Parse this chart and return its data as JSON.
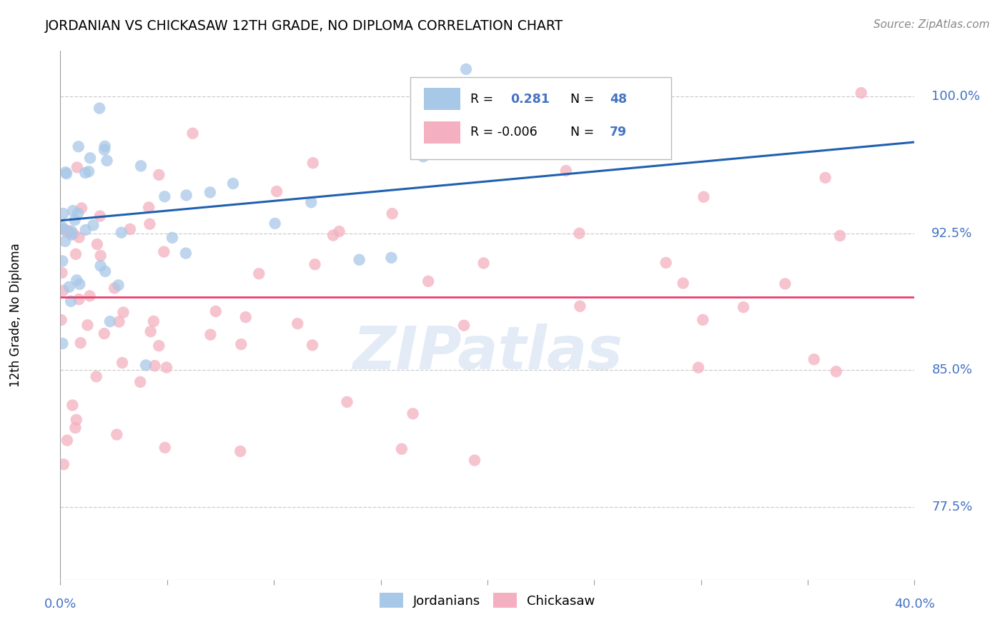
{
  "title": "JORDANIAN VS CHICKASAW 12TH GRADE, NO DIPLOMA CORRELATION CHART",
  "source": "Source: ZipAtlas.com",
  "ylabel": "12th Grade, No Diploma",
  "xlim": [
    0.0,
    40.0
  ],
  "ylim": [
    73.5,
    102.5
  ],
  "yticks": [
    77.5,
    85.0,
    92.5,
    100.0
  ],
  "r_jordanian": 0.281,
  "n_jordanian": 48,
  "r_chickasaw": -0.006,
  "n_chickasaw": 79,
  "jordanian_color": "#a8c8e8",
  "chickasaw_color": "#f4b0c0",
  "jordanian_line_color": "#2060b0",
  "chickasaw_line_color": "#e84070",
  "watermark": "ZIPatlas",
  "blue_line_y0": 93.2,
  "blue_line_y1": 97.5,
  "pink_line_y": 89.0
}
